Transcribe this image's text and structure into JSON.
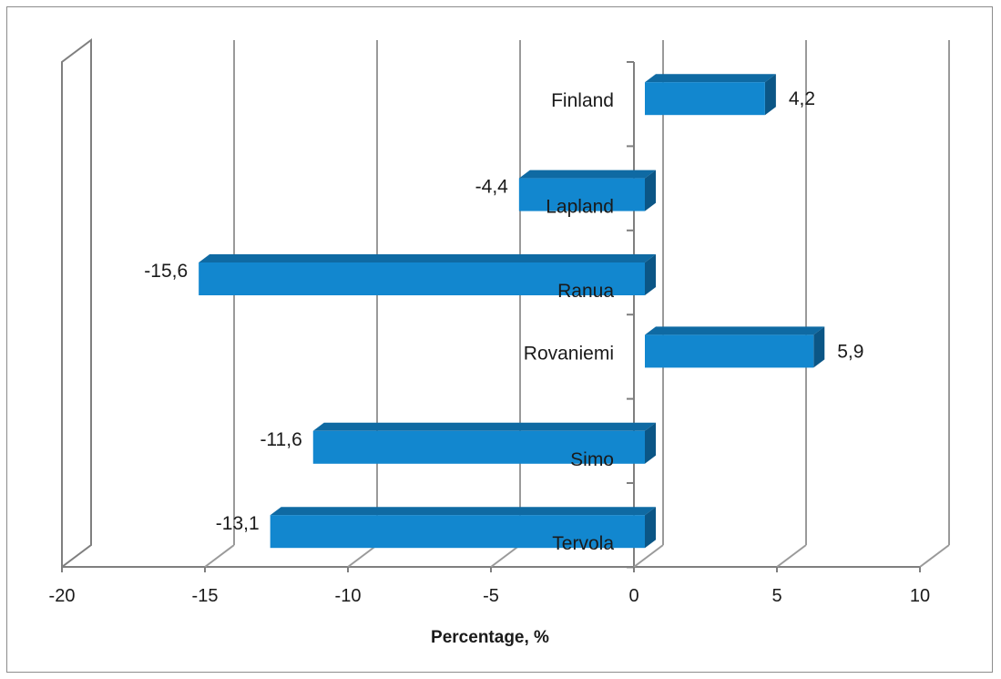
{
  "chart_data": {
    "type": "bar",
    "orientation": "horizontal",
    "style": "3d",
    "categories": [
      "Finland",
      "Lapland",
      "Ranua",
      "Rovaniemi",
      "Simo",
      "Tervola"
    ],
    "values": [
      4.2,
      -4.4,
      -15.6,
      5.9,
      -11.6,
      -13.1
    ],
    "value_labels": [
      "4,2",
      "-4,4",
      "-15,6",
      "5,9",
      "-11,6",
      "-13,1"
    ],
    "xlabel": "Percentage, %",
    "ylabel": "",
    "xlim": [
      -20,
      10
    ],
    "xticks": [
      -20,
      -15,
      -10,
      -5,
      0,
      5,
      10
    ],
    "xtick_labels": [
      "-20",
      "-15",
      "-10",
      "-5",
      "0",
      "5",
      "10"
    ],
    "grid": "vertical",
    "legend": "none",
    "colors": {
      "bar_front": "#1287cf",
      "bar_top": "#0f6aa3",
      "bar_side": "#0b5686",
      "grid": "#9a9a9a",
      "axis": "#7f7f7f"
    }
  }
}
